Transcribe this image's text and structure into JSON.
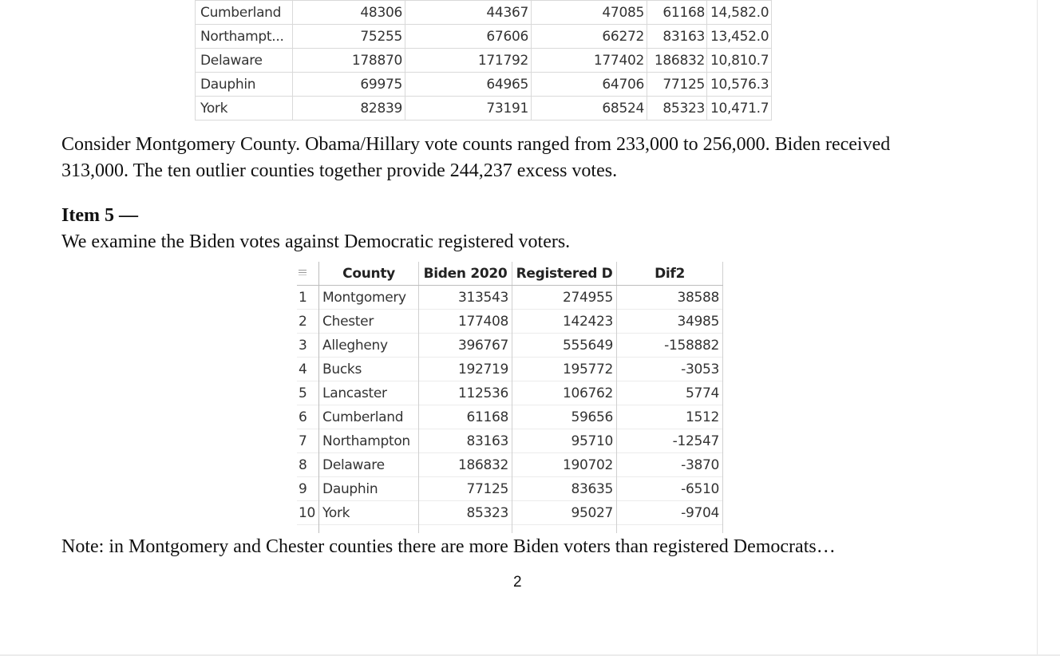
{
  "top_table": {
    "rows": [
      {
        "county": "Cumberland",
        "c1": "48306",
        "c2": "44367",
        "c3": "47085",
        "c4": "61168",
        "c5": "14,582.0"
      },
      {
        "county": "Northampt...",
        "c1": "75255",
        "c2": "67606",
        "c3": "66272",
        "c4": "83163",
        "c5": "13,452.0"
      },
      {
        "county": "Delaware",
        "c1": "178870",
        "c2": "171792",
        "c3": "177402",
        "c4": "186832",
        "c5": "10,810.7"
      },
      {
        "county": "Dauphin",
        "c1": "69975",
        "c2": "64965",
        "c3": "64706",
        "c4": "77125",
        "c5": "10,576.3"
      },
      {
        "county": "York",
        "c1": "82839",
        "c2": "73191",
        "c3": "68524",
        "c4": "85323",
        "c5": "10,471.7"
      }
    ]
  },
  "paragraph1": {
    "line1": "Consider Montgomery County. Obama/Hillary vote counts ranged from 233,000 to 256,000. Biden received",
    "line2": "313,000. The ten outlier counties together provide 244,237 excess votes."
  },
  "item5": {
    "heading": "Item 5 —",
    "intro": "We examine the Biden votes against Democratic registered voters."
  },
  "reg_table": {
    "headers": {
      "county": "County",
      "biden": "Biden 2020",
      "registered": "Registered D",
      "dif": "Dif2"
    },
    "rows": [
      {
        "n": "1",
        "county": "Montgomery",
        "biden": "313543",
        "registered": "274955",
        "dif": "38588"
      },
      {
        "n": "2",
        "county": "Chester",
        "biden": "177408",
        "registered": "142423",
        "dif": "34985"
      },
      {
        "n": "3",
        "county": "Allegheny",
        "biden": "396767",
        "registered": "555649",
        "dif": "-158882"
      },
      {
        "n": "4",
        "county": "Bucks",
        "biden": "192719",
        "registered": "195772",
        "dif": "-3053"
      },
      {
        "n": "5",
        "county": "Lancaster",
        "biden": "112536",
        "registered": "106762",
        "dif": "5774"
      },
      {
        "n": "6",
        "county": "Cumberland",
        "biden": "61168",
        "registered": "59656",
        "dif": "1512"
      },
      {
        "n": "7",
        "county": "Northampton",
        "biden": "83163",
        "registered": "95710",
        "dif": "-12547"
      },
      {
        "n": "8",
        "county": "Delaware",
        "biden": "186832",
        "registered": "190702",
        "dif": "-3870"
      },
      {
        "n": "9",
        "county": "Dauphin",
        "biden": "77125",
        "registered": "83635",
        "dif": "-6510"
      },
      {
        "n": "10",
        "county": "York",
        "biden": "85323",
        "registered": "95027",
        "dif": "-9704"
      }
    ]
  },
  "note": "Note: in Montgomery and Chester counties there are more Biden voters than registered Democrats…",
  "page_number": "2"
}
